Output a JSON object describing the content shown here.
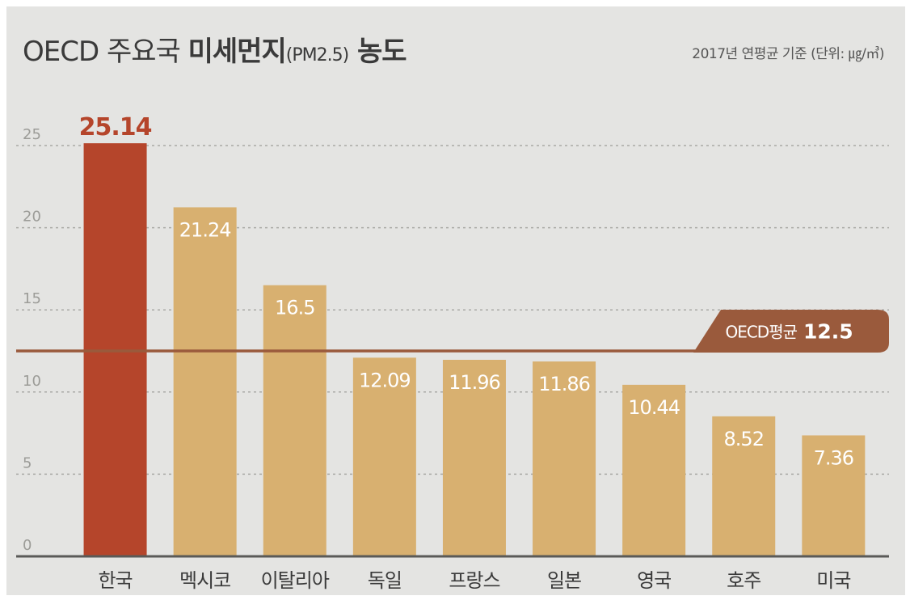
{
  "title": {
    "part1": "OECD 주요국 ",
    "part2": "미세먼지",
    "part3": "(PM2.5)",
    "part4": " 농도"
  },
  "subtitle": "2017년 연평균 기준 (단위: ㎍/㎥)",
  "colors": {
    "highlight_bar": "#b5452b",
    "bar": "#d8b070",
    "average_line": "#9a5a3c",
    "highlight_label": "#b5452b",
    "bar_label": "#ffffff",
    "background": "#e4e4e2"
  },
  "chart_data": {
    "type": "bar",
    "categories": [
      "한국",
      "멕시코",
      "이탈리아",
      "독일",
      "프랑스",
      "일본",
      "영국",
      "호주",
      "미국"
    ],
    "values": [
      25.14,
      21.24,
      16.5,
      12.09,
      11.96,
      11.86,
      10.44,
      8.52,
      7.36
    ],
    "value_labels": [
      "25.14",
      "21.24",
      "16.5",
      "12.09",
      "11.96",
      "11.86",
      "10.44",
      "8.52",
      "7.36"
    ],
    "highlight_index": 0,
    "ylim": [
      0,
      25
    ],
    "yticks": [
      0,
      5,
      10,
      15,
      20,
      25
    ],
    "ytick_labels": [
      "0",
      "5",
      "10",
      "15",
      "20",
      "25"
    ],
    "grid": "dotted horizontal",
    "reference_line": {
      "label": "OECD평균",
      "value": 12.5,
      "value_label": "12.5"
    }
  }
}
